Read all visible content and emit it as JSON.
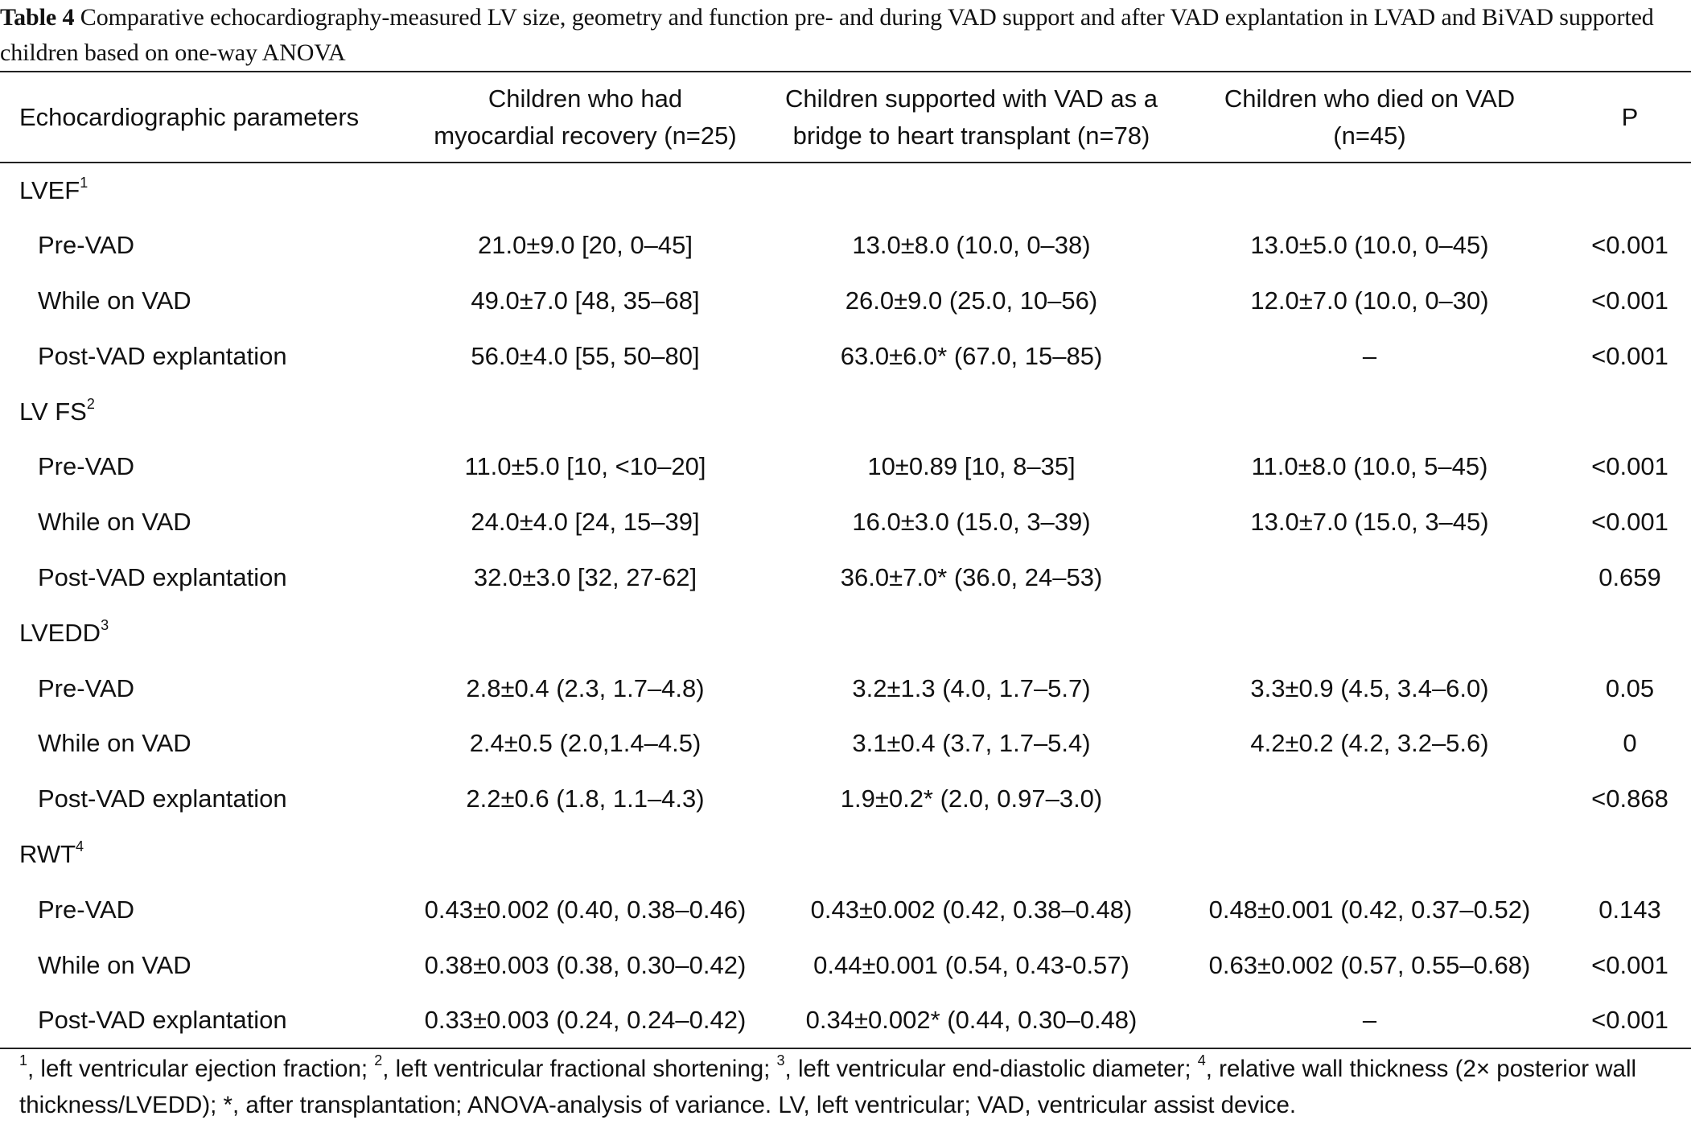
{
  "caption": {
    "label": "Table 4",
    "text": " Comparative echocardiography-measured LV size, geometry and function pre- and during VAD support and after VAD explantation in LVAD and BiVAD supported children based on one-way ANOVA"
  },
  "header": {
    "col1": "Echocardiographic parameters",
    "col2_line1": "Children who had",
    "col2_line2": "myocardial recovery (n=25)",
    "col3_line1": "Children supported with VAD as a",
    "col3_line2": "bridge to heart transplant (n=78)",
    "col4_line1": "Children who died on VAD",
    "col4_line2": "(n=45)",
    "col5": "P"
  },
  "sections": [
    {
      "label": "LVEF",
      "sup": "1",
      "rows": [
        {
          "name": "Pre-VAD",
          "recovery": "21.0±9.0 [20, 0–45]",
          "transplant": "13.0±8.0 (10.0, 0–38)",
          "died": "13.0±5.0 (10.0, 0–45)",
          "p": "<0.001"
        },
        {
          "name": "While on VAD",
          "recovery": "49.0±7.0 [48, 35–68]",
          "transplant": "26.0±9.0 (25.0, 10–56)",
          "died": "12.0±7.0 (10.0, 0–30)",
          "p": "<0.001"
        },
        {
          "name": "Post-VAD explantation",
          "recovery": "56.0±4.0 [55, 50–80]",
          "transplant": "63.0±6.0* (67.0, 15–85)",
          "died": "–",
          "p": "<0.001"
        }
      ]
    },
    {
      "label": "LV FS",
      "sup": "2",
      "rows": [
        {
          "name": "Pre-VAD",
          "recovery": "11.0±5.0 [10, <10–20]",
          "transplant": "10±0.89 [10, 8–35]",
          "died": "11.0±8.0 (10.0, 5–45)",
          "p": "<0.001"
        },
        {
          "name": "While on VAD",
          "recovery": "24.0±4.0 [24, 15–39]",
          "transplant": "16.0±3.0 (15.0, 3–39)",
          "died": "13.0±7.0 (15.0, 3–45)",
          "p": "<0.001"
        },
        {
          "name": "Post-VAD explantation",
          "recovery": "32.0±3.0 [32, 27-62]",
          "transplant": "36.0±7.0* (36.0, 24–53)",
          "died": "",
          "p": "0.659"
        }
      ]
    },
    {
      "label": "LVEDD",
      "sup": "3",
      "rows": [
        {
          "name": "Pre-VAD",
          "recovery": "2.8±0.4 (2.3, 1.7–4.8)",
          "transplant": "3.2±1.3 (4.0, 1.7–5.7)",
          "died": "3.3±0.9 (4.5, 3.4–6.0)",
          "p": "0.05"
        },
        {
          "name": "While on VAD",
          "recovery": "2.4±0.5 (2.0,1.4–4.5)",
          "transplant": "3.1±0.4 (3.7, 1.7–5.4)",
          "died": "4.2±0.2 (4.2, 3.2–5.6)",
          "p": "0"
        },
        {
          "name": "Post-VAD explantation",
          "recovery": "2.2±0.6 (1.8, 1.1–4.3)",
          "transplant": "1.9±0.2* (2.0, 0.97–3.0)",
          "died": "",
          "p": "<0.868"
        }
      ]
    },
    {
      "label": "RWT",
      "sup": "4",
      "rows": [
        {
          "name": "Pre-VAD",
          "recovery": "0.43±0.002 (0.40, 0.38–0.46)",
          "transplant": "0.43±0.002 (0.42, 0.38–0.48)",
          "died": "0.48±0.001 (0.42, 0.37–0.52)",
          "p": "0.143"
        },
        {
          "name": "While on VAD",
          "recovery": "0.38±0.003 (0.38, 0.30–0.42)",
          "transplant": "0.44±0.001 (0.54, 0.43-0.57)",
          "died": "0.63±0.002 (0.57, 0.55–0.68)",
          "p": "<0.001"
        },
        {
          "name": "Post-VAD explantation",
          "recovery": "0.33±0.003 (0.24, 0.24–0.42)",
          "transplant": "0.34±0.002* (0.44, 0.30–0.48)",
          "died": "–",
          "p": "<0.001"
        }
      ]
    }
  ],
  "footnote": [
    {
      "sup": "1",
      "text": ", left ventricular ejection fraction; "
    },
    {
      "sup": "2",
      "text": ", left ventricular fractional shortening; "
    },
    {
      "sup": "3",
      "text": ", left ventricular end-diastolic diameter; "
    },
    {
      "sup": "4",
      "text": ", relative wall thickness (2× posterior wall thickness/LVEDD); *, after transplantation; ANOVA-analysis of variance. LV, left ventricular; VAD, ventricular assist device."
    }
  ]
}
